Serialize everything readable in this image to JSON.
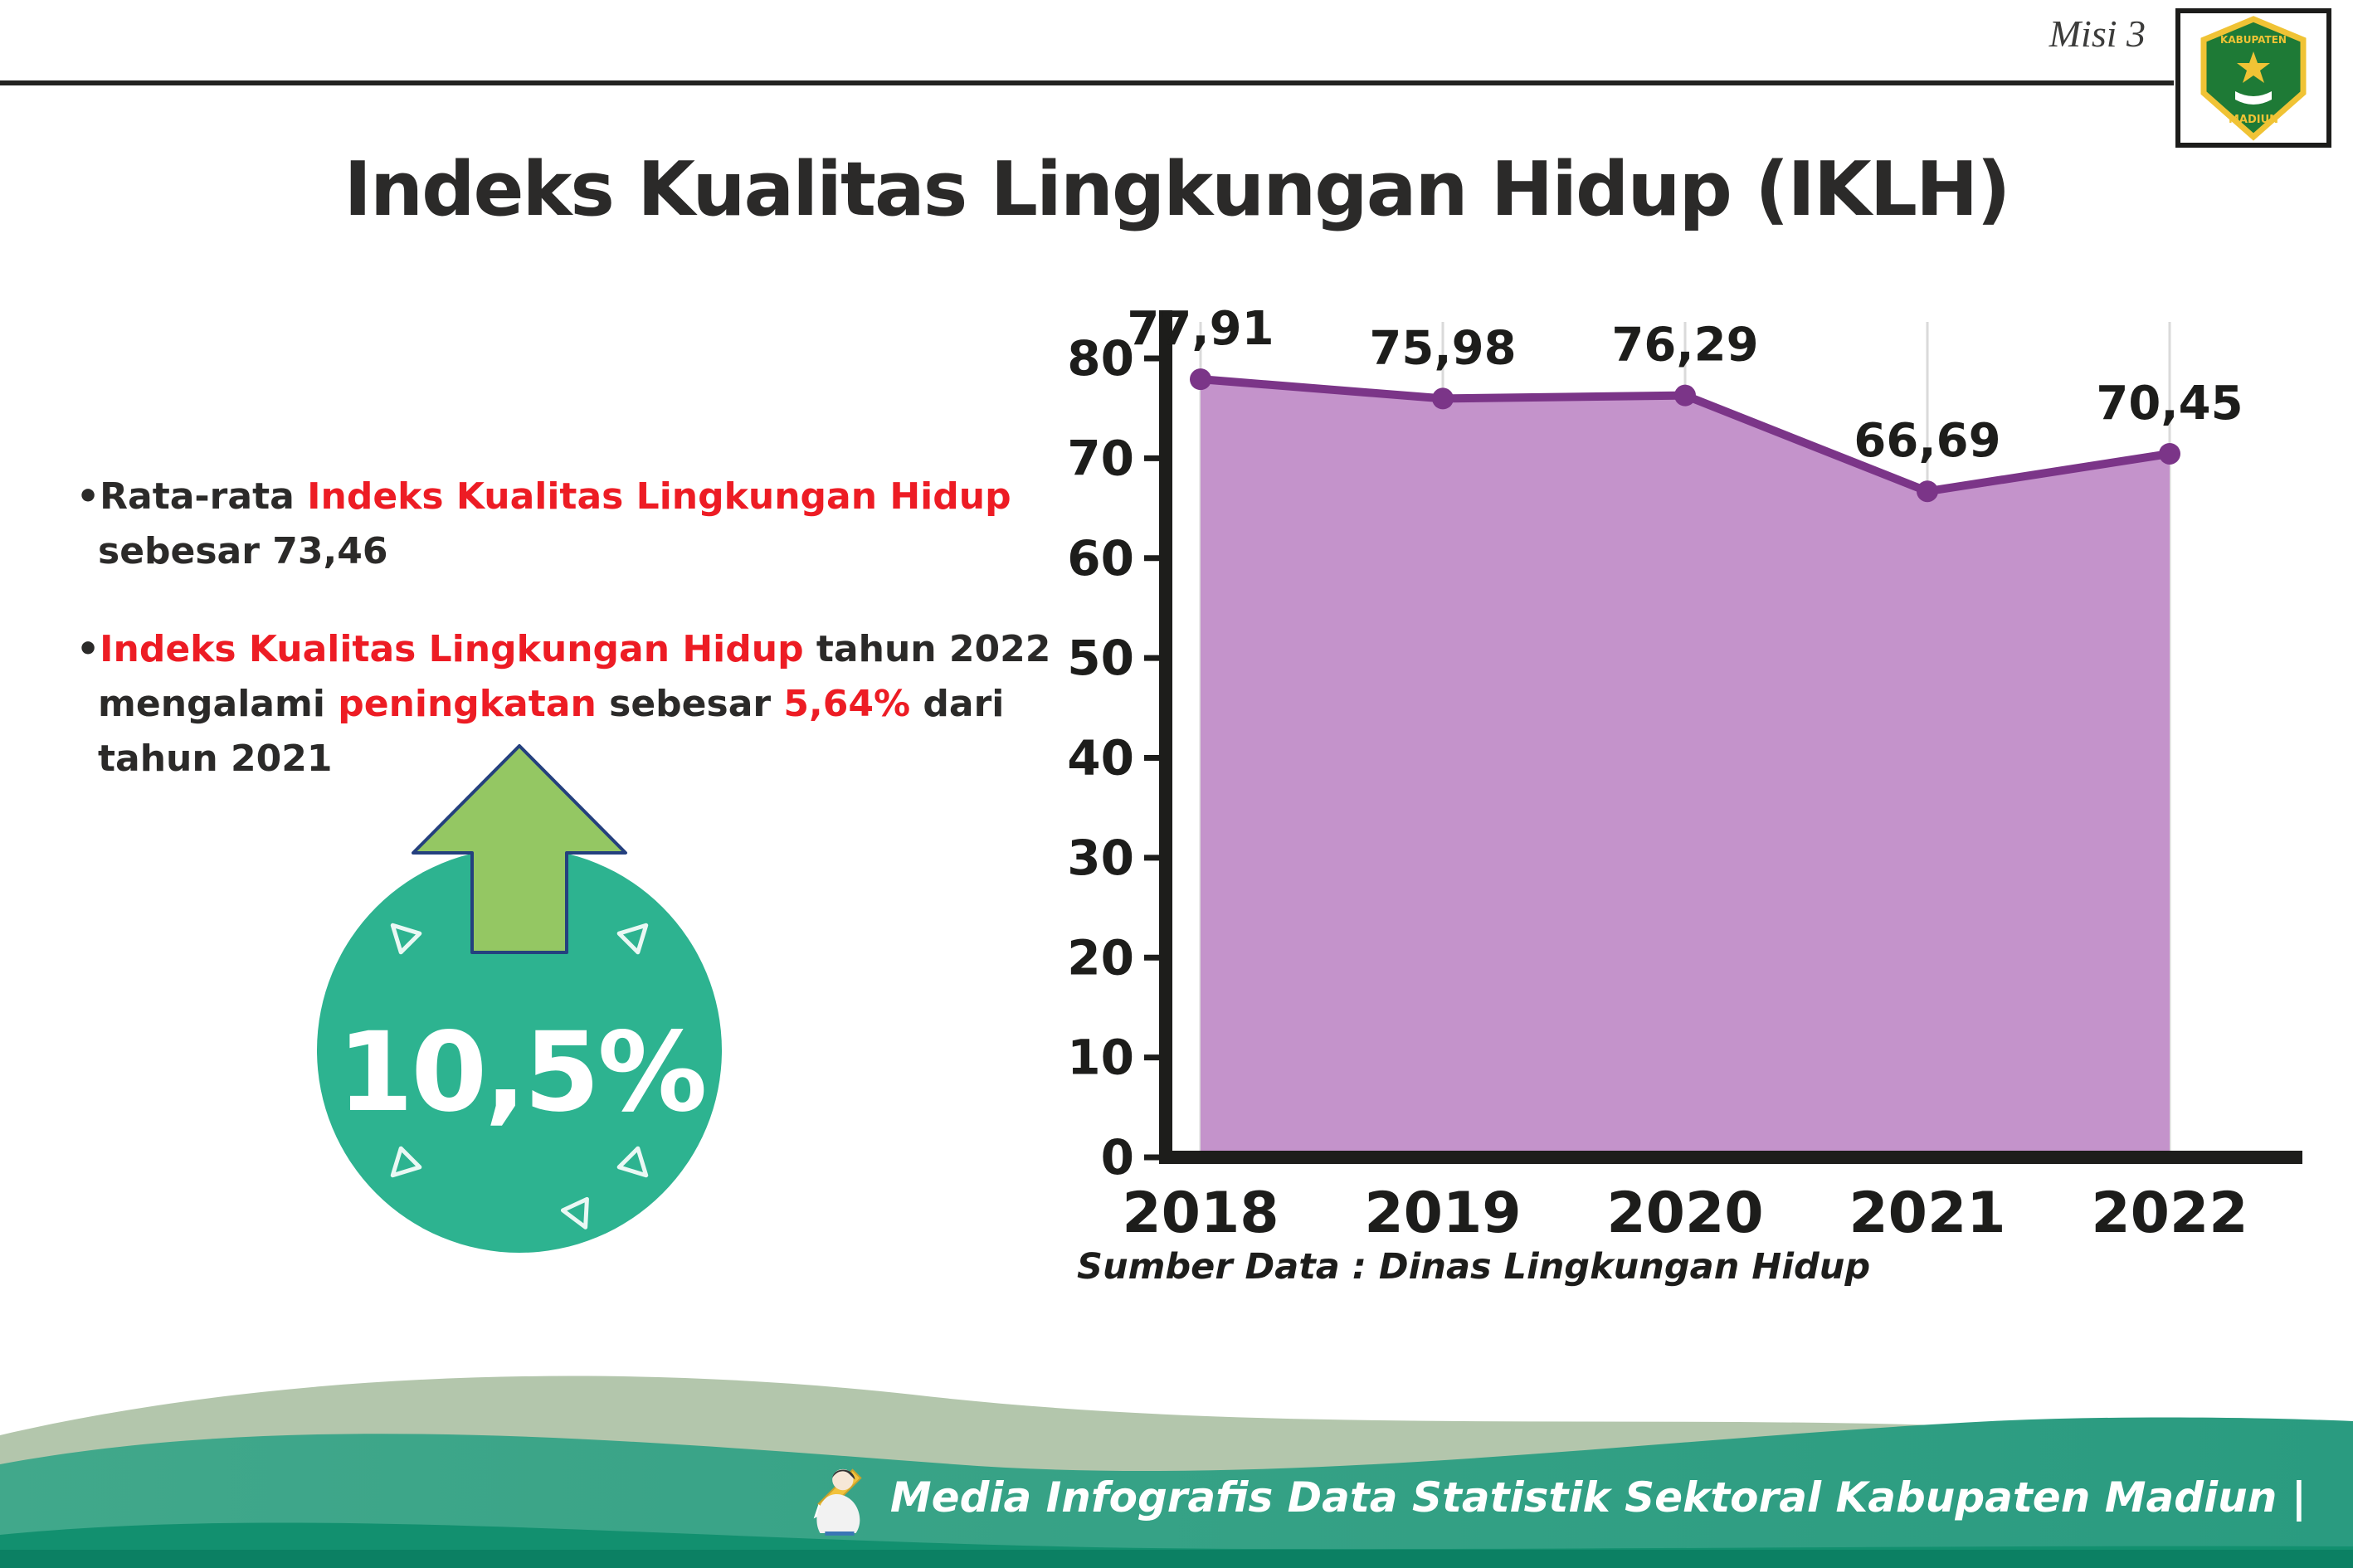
{
  "theme": {
    "red": "#ed1c24",
    "dark": "#2b2a29",
    "teal_circle": "#2db390",
    "arrow_green": "#94c763",
    "arrow_outline": "#24407e",
    "footer_teal_1": "#41a88b",
    "footer_teal_2": "#2a9b80",
    "footer_sage": "#b3c6ac",
    "footer_dark": "#12906f",
    "footer_deep": "#0b8063"
  },
  "header": {
    "misi": "Misi 3",
    "title": "Indeks Kualitas Lingkungan Hidup (IKLH)"
  },
  "logo": {
    "line1": "KABUPATEN",
    "line2": "MADIUN"
  },
  "bullets": {
    "b1": {
      "s1": "•Rata-rata ",
      "s2": "Indeks Kualitas Lingkungan Hidup",
      "s3": " sebesar 73,46"
    },
    "b2": {
      "s1": "•",
      "s2": "Indeks Kualitas Lingkungan Hidup",
      "s3": " tahun 2022 mengalami ",
      "s4": "peningkatan",
      "s5": " sebesar ",
      "s6": "5,64%",
      "s7": " dari tahun 2021"
    }
  },
  "badge": {
    "value": "10,5%"
  },
  "chart_data": {
    "type": "area",
    "categories": [
      "2018",
      "2019",
      "2020",
      "2021",
      "2022"
    ],
    "values": [
      77.91,
      75.98,
      76.29,
      66.69,
      70.45
    ],
    "value_labels": [
      "77,91",
      "75,98",
      "76,29",
      "66,69",
      "70,45"
    ],
    "title": "Indeks Kualitas Lingkungan Hidup (IKLH)",
    "xlabel": "",
    "ylabel": "",
    "ylim": [
      0,
      80
    ],
    "yticks": [
      0,
      10,
      20,
      30,
      40,
      50,
      60,
      70,
      80
    ],
    "grid": "vertical",
    "legend": false,
    "area_fill": "#c493cb",
    "line_color": "#7b3588",
    "axis_color": "#1d1d1b",
    "source": "Sumber Data : Dinas Lingkungan Hidup"
  },
  "footer": {
    "text": "Media Infografis Data Statistik Sektoral Kabupaten Madiun |"
  }
}
